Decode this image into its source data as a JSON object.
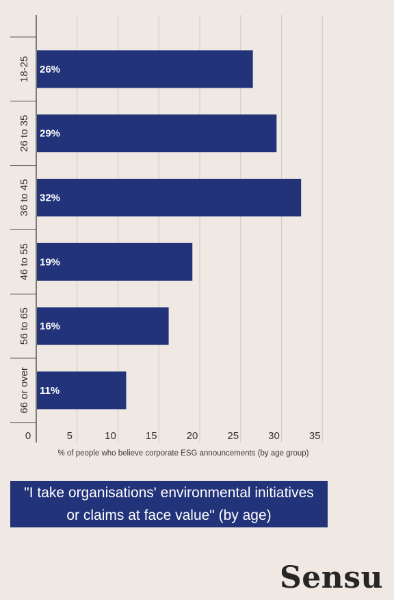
{
  "chart_data": {
    "type": "bar",
    "orientation": "horizontal",
    "categories": [
      "18-25",
      "26 to 35",
      "36 to 45",
      "46 to 55",
      "56 to 65",
      "66 or over"
    ],
    "values": [
      26.5,
      29.4,
      32.4,
      19.1,
      16.2,
      11.0
    ],
    "data_labels": [
      "26%",
      "29%",
      "32%",
      "19%",
      "16%",
      "11%"
    ],
    "x_ticks": [
      "0",
      "5",
      "10",
      "15",
      "20",
      "25",
      "30",
      "35"
    ],
    "xlim": [
      0,
      35
    ],
    "xlabel": "% of people who believe corporate ESG announcements (by age group)",
    "grid": true,
    "bar_color": "#22337a",
    "label_color": "#ffffff"
  },
  "caption": "\"I take organisations' environmental initiatives or claims at face value\" (by age)",
  "brand": "Sensu",
  "colors": {
    "background": "#efe8e3",
    "accent": "#22337a",
    "grid": "#cfcac6",
    "axis": "#555555"
  }
}
